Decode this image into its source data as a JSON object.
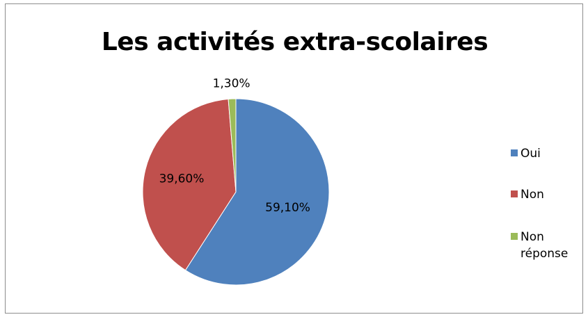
{
  "chart_data": {
    "type": "pie",
    "title": "Les activités extra-scolaires",
    "slices": [
      {
        "name": "Oui",
        "value": 59.1,
        "label": "59,10%",
        "color": "#4f81bd"
      },
      {
        "name": "Non",
        "value": 39.6,
        "label": "39,60%",
        "color": "#c0504d"
      },
      {
        "name": "Non réponse",
        "value": 1.3,
        "label": "1,30%",
        "color": "#9bbb59"
      }
    ],
    "legend_position": "right",
    "start_angle": "top, clockwise"
  }
}
